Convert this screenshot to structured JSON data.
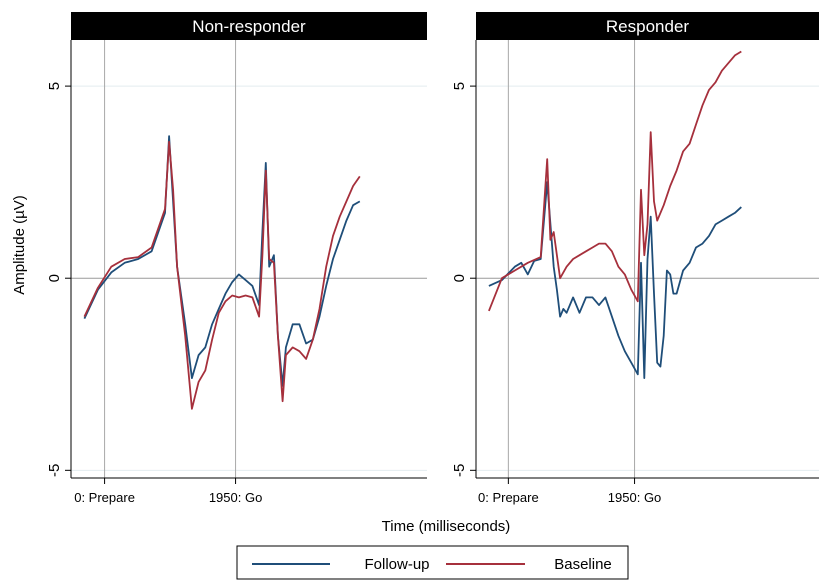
{
  "chart_data": {
    "type": "line",
    "ylabel": "Amplitude (µV)",
    "xlabel": "Time (milliseconds)",
    "ylim": [
      -5.2,
      6.2
    ],
    "yticks": [
      -5,
      0,
      5
    ],
    "xlim": [
      -500,
      4800
    ],
    "xticks": [
      {
        "value": 0,
        "label": "0: Prepare"
      },
      {
        "value": 1950,
        "label": "1950: Go"
      }
    ],
    "colors": {
      "Follow-up": "#1f4e79",
      "Baseline": "#a6303c"
    },
    "legend": [
      "Follow-up",
      "Baseline"
    ],
    "legend_position": "bottom",
    "panels": [
      {
        "title": "Non-responder",
        "series": [
          {
            "name": "Follow-up",
            "points": [
              [
                -300,
                -1.05
              ],
              [
                -100,
                -0.3
              ],
              [
                100,
                0.15
              ],
              [
                300,
                0.4
              ],
              [
                500,
                0.5
              ],
              [
                700,
                0.7
              ],
              [
                900,
                1.7
              ],
              [
                960,
                3.7
              ],
              [
                1020,
                2.0
              ],
              [
                1080,
                0.3
              ],
              [
                1200,
                -1.2
              ],
              [
                1300,
                -2.6
              ],
              [
                1400,
                -2.0
              ],
              [
                1500,
                -1.8
              ],
              [
                1600,
                -1.2
              ],
              [
                1700,
                -0.8
              ],
              [
                1800,
                -0.4
              ],
              [
                1900,
                -0.1
              ],
              [
                2000,
                0.1
              ],
              [
                2100,
                -0.05
              ],
              [
                2200,
                -0.2
              ],
              [
                2300,
                -0.7
              ],
              [
                2350,
                1.2
              ],
              [
                2400,
                3.0
              ],
              [
                2450,
                0.3
              ],
              [
                2520,
                0.6
              ],
              [
                2580,
                -1.5
              ],
              [
                2650,
                -2.8
              ],
              [
                2700,
                -1.8
              ],
              [
                2800,
                -1.2
              ],
              [
                2900,
                -1.2
              ],
              [
                3000,
                -1.7
              ],
              [
                3100,
                -1.6
              ],
              [
                3200,
                -1.0
              ],
              [
                3300,
                -0.2
              ],
              [
                3400,
                0.5
              ],
              [
                3500,
                1.0
              ],
              [
                3600,
                1.5
              ],
              [
                3700,
                1.9
              ],
              [
                3800,
                2.0
              ]
            ]
          },
          {
            "name": "Baseline",
            "points": [
              [
                -300,
                -1.0
              ],
              [
                -100,
                -0.25
              ],
              [
                100,
                0.3
              ],
              [
                300,
                0.5
              ],
              [
                500,
                0.55
              ],
              [
                700,
                0.8
              ],
              [
                900,
                1.8
              ],
              [
                960,
                3.55
              ],
              [
                1020,
                2.3
              ],
              [
                1080,
                0.3
              ],
              [
                1200,
                -1.5
              ],
              [
                1300,
                -3.4
              ],
              [
                1400,
                -2.7
              ],
              [
                1500,
                -2.4
              ],
              [
                1600,
                -1.6
              ],
              [
                1700,
                -0.9
              ],
              [
                1800,
                -0.6
              ],
              [
                1900,
                -0.45
              ],
              [
                2000,
                -0.5
              ],
              [
                2100,
                -0.45
              ],
              [
                2200,
                -0.5
              ],
              [
                2300,
                -1.0
              ],
              [
                2350,
                0.6
              ],
              [
                2400,
                2.8
              ],
              [
                2450,
                0.5
              ],
              [
                2520,
                0.4
              ],
              [
                2580,
                -1.5
              ],
              [
                2650,
                -3.2
              ],
              [
                2700,
                -2.0
              ],
              [
                2800,
                -1.8
              ],
              [
                2900,
                -1.9
              ],
              [
                3000,
                -2.1
              ],
              [
                3100,
                -1.6
              ],
              [
                3200,
                -0.8
              ],
              [
                3300,
                0.3
              ],
              [
                3400,
                1.1
              ],
              [
                3500,
                1.6
              ],
              [
                3600,
                2.0
              ],
              [
                3700,
                2.4
              ],
              [
                3800,
                2.65
              ]
            ]
          }
        ]
      },
      {
        "title": "Responder",
        "series": [
          {
            "name": "Follow-up",
            "points": [
              [
                -300,
                -0.2
              ],
              [
                -100,
                -0.05
              ],
              [
                100,
                0.3
              ],
              [
                200,
                0.4
              ],
              [
                300,
                0.1
              ],
              [
                400,
                0.45
              ],
              [
                500,
                0.5
              ],
              [
                600,
                2.5
              ],
              [
                700,
                0.3
              ],
              [
                750,
                -0.3
              ],
              [
                800,
                -1.0
              ],
              [
                850,
                -0.8
              ],
              [
                900,
                -0.9
              ],
              [
                1000,
                -0.5
              ],
              [
                1100,
                -0.9
              ],
              [
                1200,
                -0.5
              ],
              [
                1300,
                -0.5
              ],
              [
                1400,
                -0.7
              ],
              [
                1500,
                -0.5
              ],
              [
                1600,
                -1.0
              ],
              [
                1700,
                -1.5
              ],
              [
                1800,
                -1.9
              ],
              [
                1900,
                -2.2
              ],
              [
                2000,
                -2.5
              ],
              [
                2050,
                0.4
              ],
              [
                2100,
                -2.6
              ],
              [
                2150,
                0.5
              ],
              [
                2200,
                1.6
              ],
              [
                2250,
                -0.4
              ],
              [
                2300,
                -2.2
              ],
              [
                2350,
                -2.3
              ],
              [
                2400,
                -1.5
              ],
              [
                2450,
                0.2
              ],
              [
                2500,
                0.1
              ],
              [
                2550,
                -0.4
              ],
              [
                2600,
                -0.4
              ],
              [
                2700,
                0.2
              ],
              [
                2800,
                0.4
              ],
              [
                2900,
                0.8
              ],
              [
                3000,
                0.9
              ],
              [
                3100,
                1.1
              ],
              [
                3200,
                1.4
              ],
              [
                3300,
                1.5
              ],
              [
                3400,
                1.6
              ],
              [
                3500,
                1.7
              ],
              [
                3600,
                1.85
              ]
            ]
          },
          {
            "name": "Baseline",
            "points": [
              [
                -300,
                -0.85
              ],
              [
                -100,
                0.0
              ],
              [
                100,
                0.2
              ],
              [
                300,
                0.4
              ],
              [
                500,
                0.55
              ],
              [
                600,
                3.1
              ],
              [
                650,
                1.0
              ],
              [
                700,
                1.2
              ],
              [
                750,
                0.6
              ],
              [
                800,
                0.0
              ],
              [
                900,
                0.3
              ],
              [
                1000,
                0.5
              ],
              [
                1100,
                0.6
              ],
              [
                1200,
                0.7
              ],
              [
                1300,
                0.8
              ],
              [
                1400,
                0.9
              ],
              [
                1500,
                0.9
              ],
              [
                1600,
                0.7
              ],
              [
                1700,
                0.3
              ],
              [
                1800,
                0.1
              ],
              [
                1900,
                -0.3
              ],
              [
                2000,
                -0.6
              ],
              [
                2050,
                2.3
              ],
              [
                2100,
                0.6
              ],
              [
                2150,
                1.4
              ],
              [
                2200,
                3.8
              ],
              [
                2250,
                2.0
              ],
              [
                2300,
                1.5
              ],
              [
                2400,
                1.9
              ],
              [
                2500,
                2.4
              ],
              [
                2600,
                2.8
              ],
              [
                2700,
                3.3
              ],
              [
                2800,
                3.5
              ],
              [
                2900,
                4.0
              ],
              [
                3000,
                4.5
              ],
              [
                3100,
                4.9
              ],
              [
                3200,
                5.1
              ],
              [
                3300,
                5.4
              ],
              [
                3400,
                5.6
              ],
              [
                3500,
                5.8
              ],
              [
                3600,
                5.9
              ]
            ]
          }
        ]
      }
    ]
  }
}
